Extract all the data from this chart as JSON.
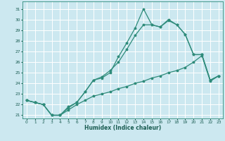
{
  "xlabel": "Humidex (Indice chaleur)",
  "bg_color": "#cce8f0",
  "grid_color": "#ffffff",
  "line_color": "#2e8b7a",
  "xlim": [
    -0.5,
    23.5
  ],
  "ylim": [
    20.7,
    31.7
  ],
  "yticks": [
    21,
    22,
    23,
    24,
    25,
    26,
    27,
    28,
    29,
    30,
    31
  ],
  "xticks": [
    0,
    1,
    2,
    3,
    4,
    5,
    6,
    7,
    8,
    9,
    10,
    11,
    12,
    13,
    14,
    15,
    16,
    17,
    18,
    19,
    20,
    21,
    22,
    23
  ],
  "line1_x": [
    0,
    1,
    2,
    3,
    4,
    5,
    6,
    7,
    8,
    9,
    10,
    11,
    12,
    13,
    14,
    15,
    16,
    17,
    18,
    19,
    20,
    21,
    22,
    23
  ],
  "line1_y": [
    22.4,
    22.2,
    22.0,
    21.0,
    21.0,
    21.5,
    22.0,
    22.4,
    22.8,
    23.0,
    23.2,
    23.5,
    23.7,
    24.0,
    24.2,
    24.5,
    24.7,
    25.0,
    25.2,
    25.5,
    26.0,
    26.6,
    24.2,
    24.7
  ],
  "line2_x": [
    0,
    1,
    2,
    3,
    4,
    5,
    6,
    7,
    8,
    9,
    10,
    11,
    12,
    13,
    14,
    15,
    16,
    17,
    18,
    19,
    20,
    21,
    22,
    23
  ],
  "line2_y": [
    22.4,
    22.2,
    22.0,
    21.0,
    21.0,
    21.7,
    22.2,
    23.2,
    24.3,
    24.6,
    25.2,
    26.0,
    27.2,
    28.5,
    29.5,
    29.5,
    29.3,
    29.9,
    29.5,
    28.6,
    26.7,
    26.7,
    24.3,
    24.7
  ],
  "line3_x": [
    0,
    1,
    2,
    3,
    4,
    5,
    6,
    7,
    8,
    9,
    10,
    11,
    12,
    13,
    14,
    15,
    16,
    17,
    18,
    19,
    20,
    21,
    22,
    23
  ],
  "line3_y": [
    22.4,
    22.2,
    22.0,
    21.0,
    21.0,
    21.8,
    22.2,
    23.2,
    24.3,
    24.5,
    25.0,
    26.5,
    27.8,
    29.2,
    31.0,
    29.5,
    29.3,
    30.0,
    29.5,
    28.6,
    26.7,
    26.7,
    24.3,
    24.7
  ]
}
